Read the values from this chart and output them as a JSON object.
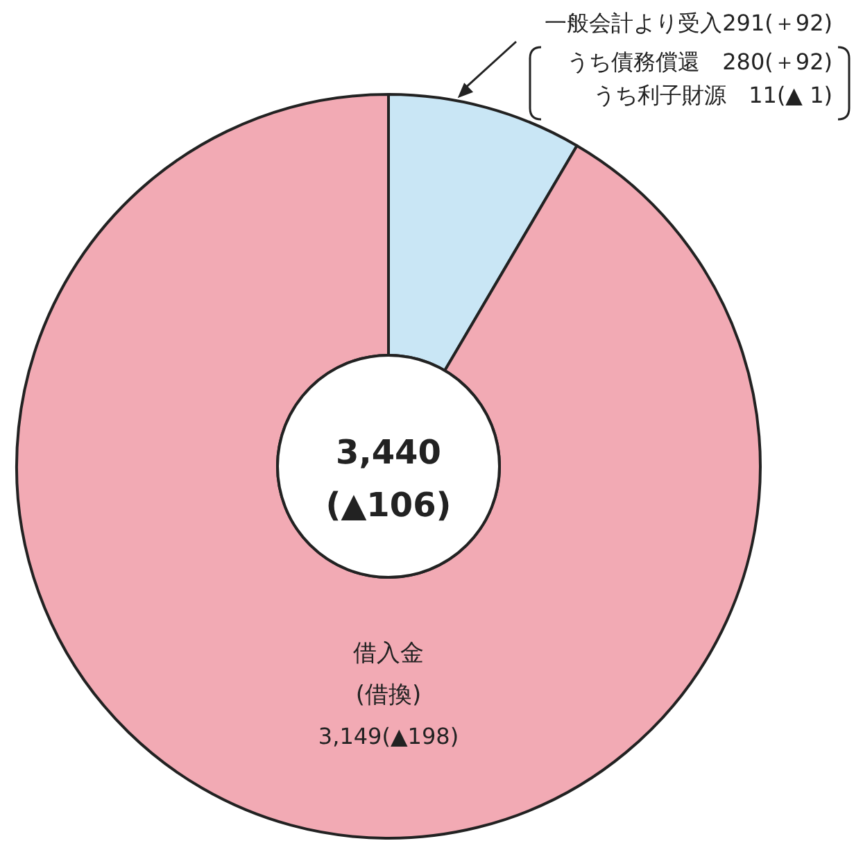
{
  "chart_data": {
    "type": "donut",
    "title": "3,440",
    "subtitle": "(▲106)",
    "categories": [
      "一般会計より受入",
      "借入金"
    ],
    "values": [
      291,
      3149
    ],
    "colors": [
      "#c9e6f5",
      "#f2aab4"
    ],
    "value_labels": [
      "291(＋92)",
      "3,149(▲198)"
    ],
    "annotations": [
      "(借換)",
      "うち債務償還　280(＋92)",
      "うち利子財源　11(▲ 1)"
    ]
  }
}
